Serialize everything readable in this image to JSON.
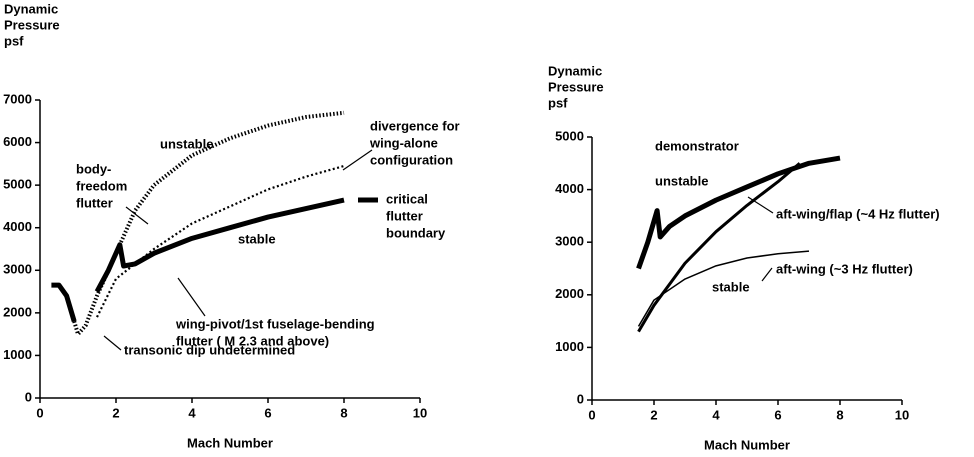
{
  "chart_data": [
    {
      "type": "line",
      "ylabel": [
        "Dynamic",
        "Pressure",
        "psf"
      ],
      "xlabel": "Mach Number",
      "xlim": [
        0,
        10
      ],
      "xticks": [
        0,
        2,
        4,
        6,
        8,
        10
      ],
      "ylim": [
        0,
        7000
      ],
      "yticks": [
        0,
        1000,
        2000,
        3000,
        4000,
        5000,
        6000,
        7000
      ],
      "series": [
        {
          "style": "thick",
          "color": "#000000",
          "x": [
            0.3,
            0.5,
            0.7,
            0.9,
            1.2,
            1.5,
            1.8,
            2.1,
            2.2,
            2.5,
            3,
            4,
            5,
            6,
            7,
            8
          ],
          "values": [
            2650,
            2650,
            2400,
            1800,
            null,
            2500,
            3000,
            3600,
            3100,
            3150,
            3400,
            3750,
            4000,
            4250,
            4450,
            4650
          ]
        },
        {
          "style": "dotted",
          "color": "#000000",
          "x": [
            0.9,
            1.0,
            1.2,
            1.5,
            2.1,
            2.5,
            3,
            4,
            5,
            6,
            7,
            8
          ],
          "values": [
            1800,
            1500,
            1700,
            2400,
            3600,
            4400,
            5000,
            5700,
            6100,
            6400,
            6600,
            6700
          ]
        },
        {
          "style": "dotted-fine",
          "color": "#000000",
          "x": [
            1.5,
            2,
            3,
            4,
            5,
            6,
            7,
            8
          ],
          "values": [
            1900,
            2800,
            3500,
            4100,
            4500,
            4900,
            5200,
            5450
          ]
        }
      ],
      "annotations": [
        [
          "unstable"
        ],
        [
          "divergence for",
          "wing-alone",
          "configuration"
        ],
        [
          "body-",
          "freedom",
          "flutter"
        ],
        [
          "stable"
        ],
        [
          "critical",
          "flutter",
          "boundary"
        ],
        [
          "wing-pivot/1st fuselage-bending",
          "flutter ( M 2.3 and above)"
        ],
        [
          "transonic dip undetermined"
        ]
      ]
    },
    {
      "type": "line",
      "ylabel": [
        "Dynamic",
        "Pressure",
        "psf"
      ],
      "xlabel": "Mach Number",
      "xlim": [
        0,
        10
      ],
      "xticks": [
        0,
        2,
        4,
        6,
        8,
        10
      ],
      "ylim": [
        0,
        5000
      ],
      "yticks": [
        0,
        1000,
        2000,
        3000,
        4000,
        5000
      ],
      "series": [
        {
          "style": "thick",
          "color": "#000000",
          "x": [
            1.5,
            1.8,
            2.1,
            2.2,
            2.5,
            3,
            4,
            5,
            6,
            7,
            8
          ],
          "values": [
            2500,
            3000,
            3600,
            3100,
            3300,
            3500,
            3800,
            4050,
            4300,
            4500,
            4600
          ]
        },
        {
          "style": "medium",
          "color": "#000000",
          "x": [
            1.5,
            2,
            3,
            4,
            5,
            6,
            6.7
          ],
          "values": [
            1300,
            1800,
            2600,
            3200,
            3700,
            4150,
            4500
          ]
        },
        {
          "style": "thin",
          "color": "#000000",
          "x": [
            1.5,
            2,
            3,
            4,
            5,
            6,
            7
          ],
          "values": [
            1400,
            1900,
            2300,
            2550,
            2700,
            2780,
            2830
          ]
        }
      ],
      "annotations": [
        [
          "demonstrator"
        ],
        [
          "unstable"
        ],
        [
          "aft-wing/flap (~4 Hz flutter)"
        ],
        [
          "aft-wing (~3 Hz flutter)"
        ],
        [
          "stable"
        ]
      ]
    }
  ]
}
